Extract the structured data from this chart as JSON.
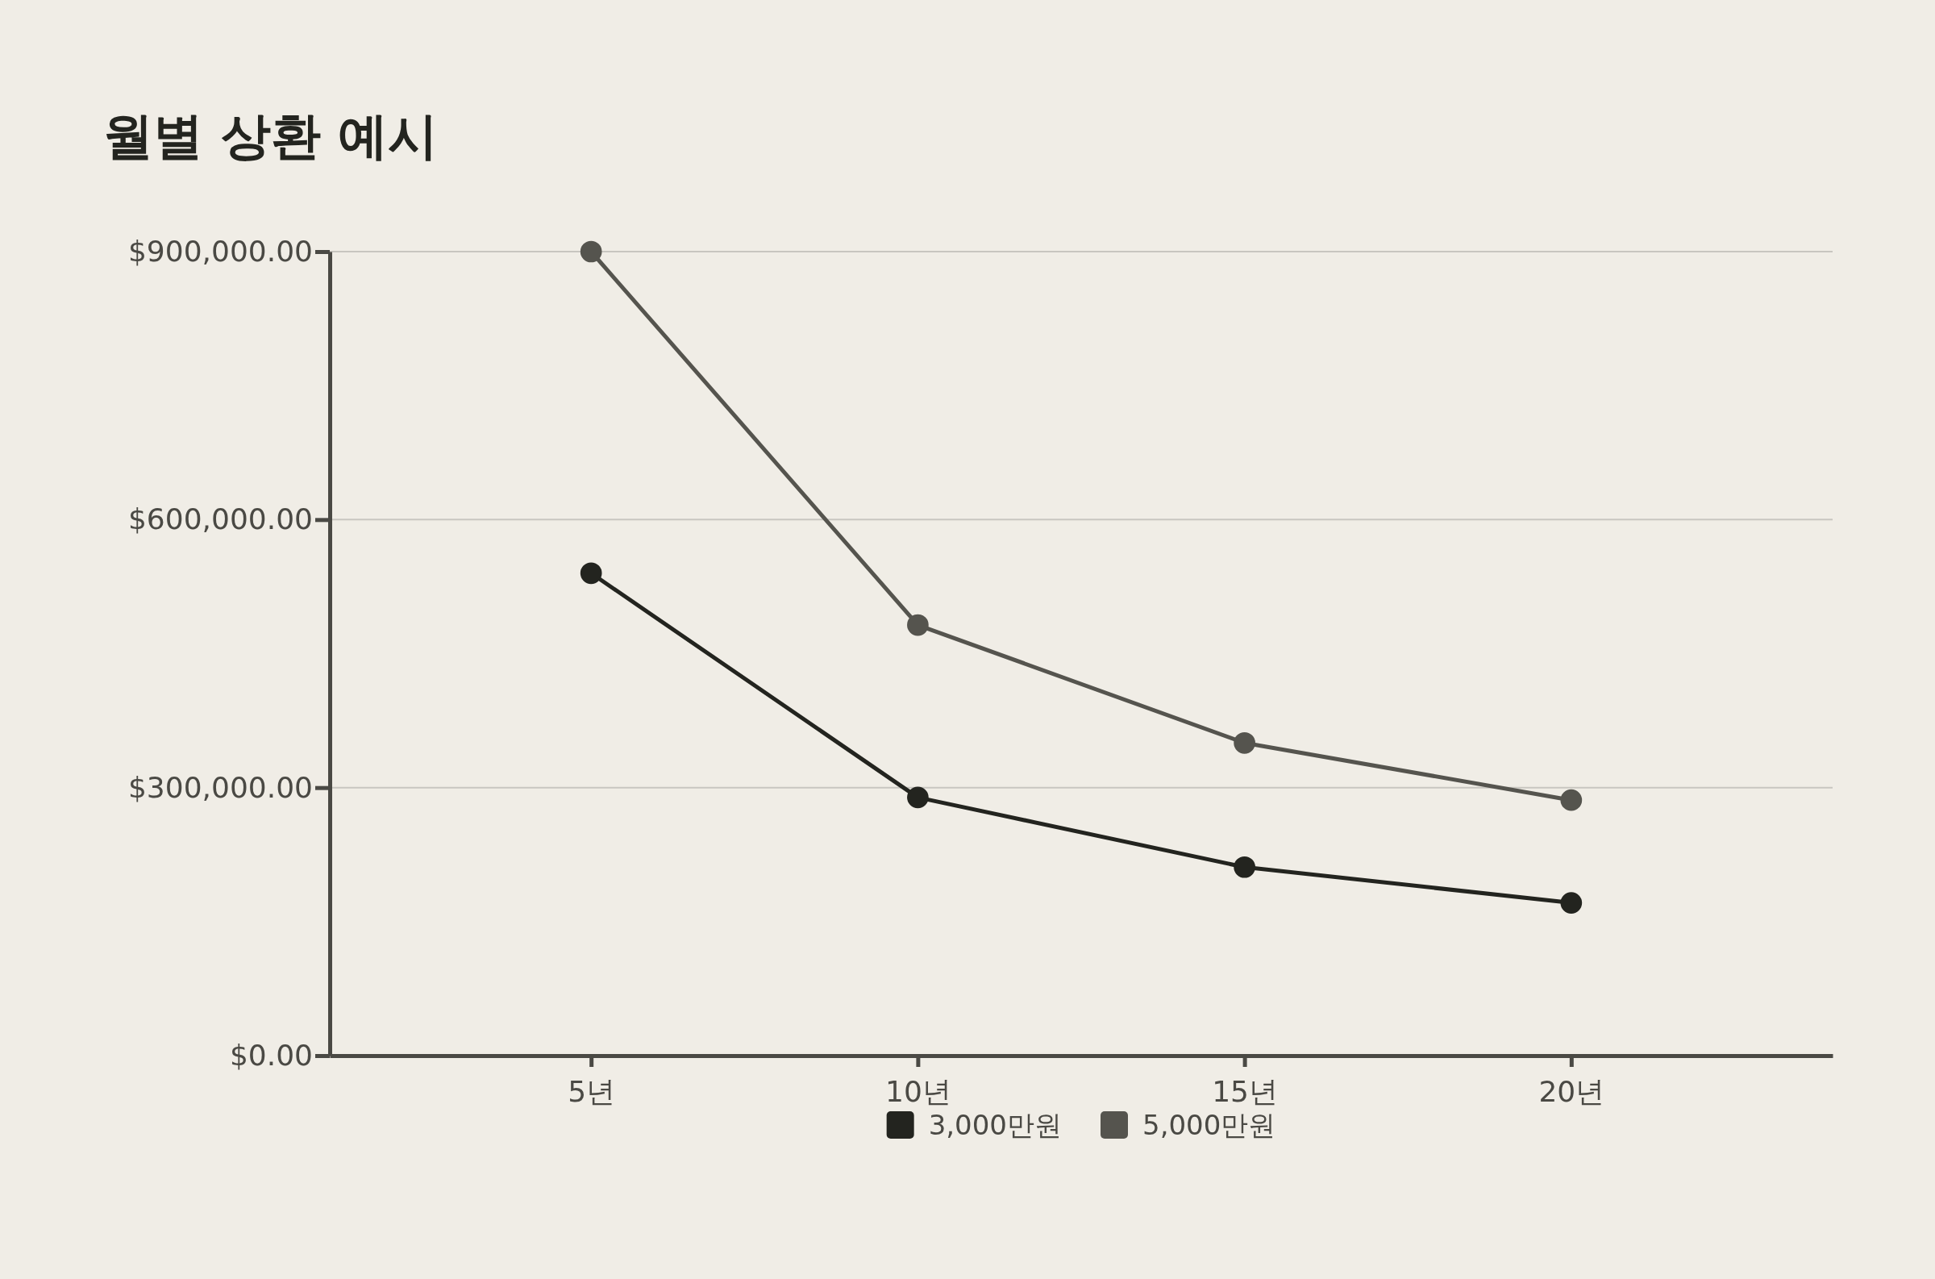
{
  "chart_data": {
    "type": "line",
    "title": "월별 상환 예시",
    "categories": [
      "5년",
      "10년",
      "15년",
      "20년"
    ],
    "series": [
      {
        "name": "3,000만원",
        "color": "#23241f",
        "values": [
          540000,
          289000,
          211000,
          171000
        ]
      },
      {
        "name": "5,000만원",
        "color": "#55544e",
        "values": [
          900000,
          482000,
          350000,
          286000
        ]
      }
    ],
    "ylim": [
      0,
      900000
    ],
    "yticks": [
      {
        "value": 0,
        "label": "$0.00"
      },
      {
        "value": 300000,
        "label": "$300,000.00"
      },
      {
        "value": 600000,
        "label": "$600,000.00"
      },
      {
        "value": 900000,
        "label": "$900,000.00"
      }
    ],
    "grid": "y",
    "legend": "bottom",
    "marker": "circle",
    "line_style": "solid"
  }
}
